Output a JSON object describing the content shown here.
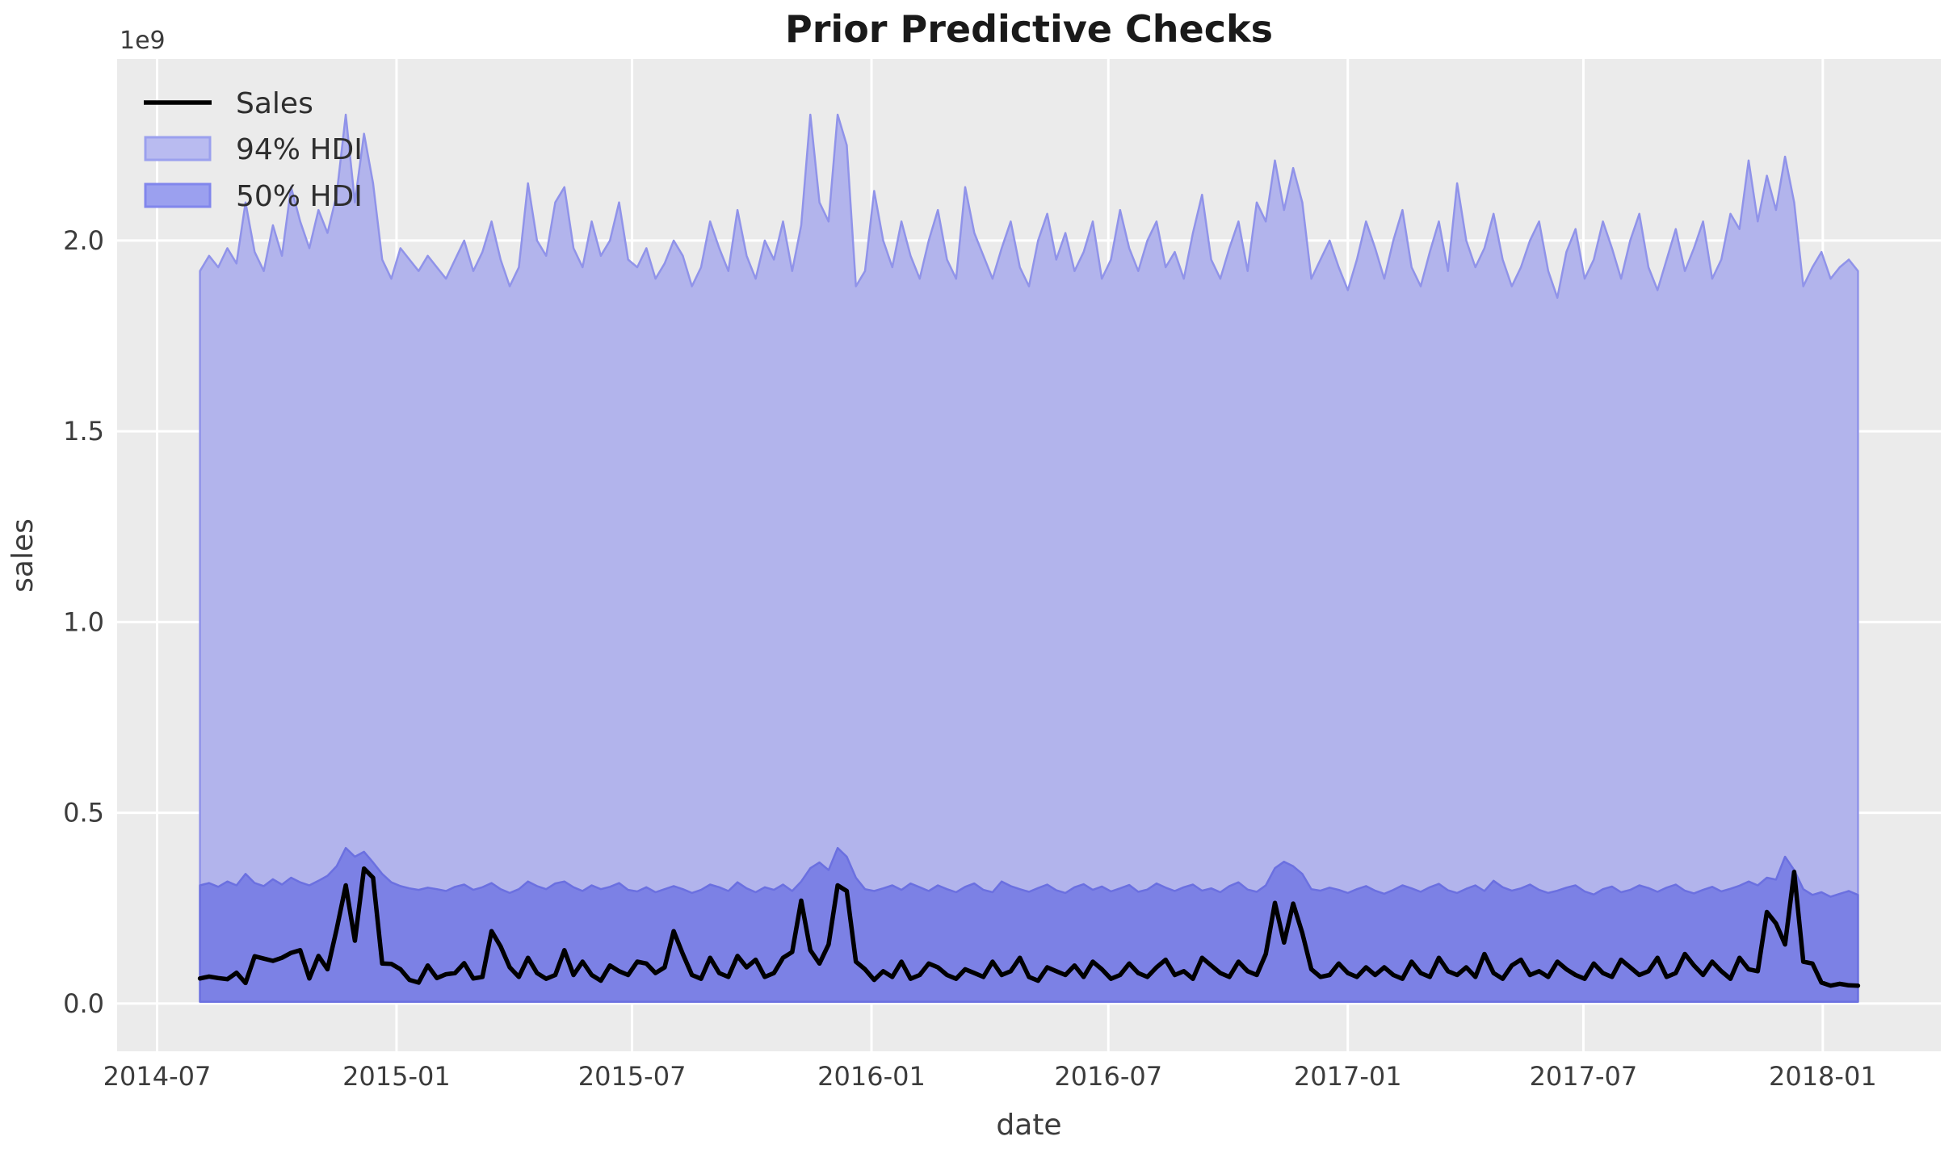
{
  "figure": {
    "offset_text": "1e9"
  },
  "colors": {
    "figure_bg": "#ffffff",
    "axes_bg": "#ebebeb",
    "grid": "#ffffff",
    "title": "#1a1a1a",
    "text": "#3c3c3c",
    "legend_text": "#2e2e2e",
    "sales_line": "#000000",
    "hdi94_fill": "#b2b4ec",
    "hdi94_edge": "#9093e9",
    "hdi50_fill": "#7c81e5",
    "hdi50_edge": "#6b70e0",
    "legend_94_fill": "#b9bbf0",
    "legend_94_edge": "#9ba0ee",
    "legend_50_fill": "#9ba0ef",
    "legend_50_edge": "#8186ec"
  },
  "chart_data": {
    "type": "area",
    "title": "Prior Predictive Checks",
    "xlabel": "date",
    "ylabel": "sales",
    "y_offset_text": "1e9",
    "values_unit": "1e9",
    "x_unit": "weekly observations, index 0 = 2014-08, index 182 = 2018-01",
    "grid": true,
    "legend_position": "upper left",
    "xlim": [
      -9.1,
      191.1
    ],
    "ylim": [
      -0.125,
      2.476
    ],
    "x_tick_labels": [
      "2014-07",
      "2015-01",
      "2015-07",
      "2016-01",
      "2016-07",
      "2017-01",
      "2017-07",
      "2018-01"
    ],
    "x_tick_positions": [
      -4.71,
      21.57,
      47.43,
      73.71,
      99.71,
      126.0,
      151.86,
      178.14
    ],
    "y_tick_labels": [
      "0.0",
      "0.5",
      "1.0",
      "1.5",
      "2.0"
    ],
    "y_tick_values": [
      0,
      0.5,
      1.0,
      1.5,
      2.0
    ],
    "series": [
      {
        "name": "Sales",
        "type": "line",
        "values": [
          0.066,
          0.071,
          0.067,
          0.064,
          0.081,
          0.054,
          0.124,
          0.118,
          0.112,
          0.12,
          0.133,
          0.14,
          0.066,
          0.125,
          0.09,
          0.195,
          0.31,
          0.165,
          0.354,
          0.33,
          0.105,
          0.104,
          0.09,
          0.062,
          0.055,
          0.1,
          0.067,
          0.077,
          0.08,
          0.106,
          0.066,
          0.07,
          0.19,
          0.15,
          0.095,
          0.07,
          0.12,
          0.08,
          0.065,
          0.075,
          0.14,
          0.075,
          0.11,
          0.075,
          0.06,
          0.1,
          0.085,
          0.075,
          0.11,
          0.105,
          0.08,
          0.095,
          0.19,
          0.13,
          0.075,
          0.065,
          0.12,
          0.08,
          0.07,
          0.125,
          0.095,
          0.115,
          0.07,
          0.08,
          0.12,
          0.135,
          0.27,
          0.14,
          0.105,
          0.155,
          0.31,
          0.295,
          0.11,
          0.09,
          0.062,
          0.085,
          0.07,
          0.11,
          0.065,
          0.075,
          0.105,
          0.095,
          0.075,
          0.065,
          0.09,
          0.08,
          0.07,
          0.11,
          0.075,
          0.085,
          0.12,
          0.07,
          0.06,
          0.095,
          0.085,
          0.075,
          0.1,
          0.07,
          0.11,
          0.09,
          0.065,
          0.075,
          0.105,
          0.08,
          0.07,
          0.095,
          0.115,
          0.075,
          0.085,
          0.065,
          0.12,
          0.1,
          0.08,
          0.07,
          0.11,
          0.085,
          0.075,
          0.13,
          0.264,
          0.16,
          0.262,
          0.185,
          0.09,
          0.07,
          0.075,
          0.105,
          0.08,
          0.07,
          0.095,
          0.075,
          0.095,
          0.075,
          0.065,
          0.11,
          0.08,
          0.07,
          0.12,
          0.085,
          0.075,
          0.095,
          0.07,
          0.13,
          0.08,
          0.065,
          0.1,
          0.115,
          0.075,
          0.085,
          0.07,
          0.11,
          0.09,
          0.075,
          0.065,
          0.105,
          0.08,
          0.07,
          0.115,
          0.095,
          0.075,
          0.085,
          0.12,
          0.07,
          0.08,
          0.13,
          0.1,
          0.075,
          0.11,
          0.085,
          0.065,
          0.12,
          0.09,
          0.085,
          0.24,
          0.21,
          0.155,
          0.345,
          0.11,
          0.105,
          0.055,
          0.047,
          0.052,
          0.048,
          0.047
        ]
      },
      {
        "name": "94% HDI",
        "type": "band",
        "lower_constant": 0.005,
        "upper": [
          1.92,
          1.96,
          1.93,
          1.98,
          1.94,
          2.1,
          1.97,
          1.92,
          2.04,
          1.96,
          2.14,
          2.05,
          1.98,
          2.08,
          2.02,
          2.12,
          2.33,
          2.1,
          2.28,
          2.15,
          1.95,
          1.9,
          1.98,
          1.95,
          1.92,
          1.96,
          1.93,
          1.9,
          1.95,
          2.0,
          1.92,
          1.97,
          2.05,
          1.95,
          1.88,
          1.93,
          2.15,
          2.0,
          1.96,
          2.1,
          2.14,
          1.98,
          1.93,
          2.05,
          1.96,
          2.0,
          2.1,
          1.95,
          1.93,
          1.98,
          1.9,
          1.94,
          2.0,
          1.96,
          1.88,
          1.93,
          2.05,
          1.98,
          1.92,
          2.08,
          1.96,
          1.9,
          2.0,
          1.95,
          2.05,
          1.92,
          2.04,
          2.33,
          2.1,
          2.05,
          2.33,
          2.25,
          1.88,
          1.92,
          2.13,
          2.0,
          1.93,
          2.05,
          1.96,
          1.9,
          2.0,
          2.08,
          1.95,
          1.9,
          2.14,
          2.02,
          1.96,
          1.9,
          1.98,
          2.05,
          1.93,
          1.88,
          2.0,
          2.07,
          1.95,
          2.02,
          1.92,
          1.97,
          2.05,
          1.9,
          1.95,
          2.08,
          1.98,
          1.92,
          2.0,
          2.05,
          1.93,
          1.97,
          1.9,
          2.02,
          2.12,
          1.95,
          1.9,
          1.98,
          2.05,
          1.92,
          2.1,
          2.05,
          2.21,
          2.08,
          2.19,
          2.1,
          1.9,
          1.95,
          2.0,
          1.93,
          1.87,
          1.95,
          2.05,
          1.98,
          1.9,
          2.0,
          2.08,
          1.93,
          1.88,
          1.97,
          2.05,
          1.92,
          2.15,
          2.0,
          1.93,
          1.98,
          2.07,
          1.95,
          1.88,
          1.93,
          2.0,
          2.05,
          1.92,
          1.85,
          1.97,
          2.03,
          1.9,
          1.95,
          2.05,
          1.98,
          1.9,
          2.0,
          2.07,
          1.93,
          1.87,
          1.95,
          2.03,
          1.92,
          1.98,
          2.05,
          1.9,
          1.95,
          2.07,
          2.03,
          2.21,
          2.05,
          2.17,
          2.08,
          2.22,
          2.1,
          1.88,
          1.93,
          1.97,
          1.9,
          1.93,
          1.95,
          1.92
        ]
      },
      {
        "name": "50% HDI",
        "type": "band",
        "lower_constant": 0.005,
        "upper": [
          0.31,
          0.316,
          0.306,
          0.32,
          0.31,
          0.34,
          0.316,
          0.308,
          0.326,
          0.312,
          0.33,
          0.318,
          0.31,
          0.322,
          0.335,
          0.36,
          0.408,
          0.385,
          0.398,
          0.37,
          0.34,
          0.318,
          0.308,
          0.302,
          0.298,
          0.304,
          0.3,
          0.295,
          0.306,
          0.312,
          0.298,
          0.305,
          0.316,
          0.3,
          0.29,
          0.3,
          0.32,
          0.308,
          0.3,
          0.315,
          0.32,
          0.305,
          0.295,
          0.31,
          0.3,
          0.306,
          0.316,
          0.298,
          0.294,
          0.305,
          0.292,
          0.3,
          0.308,
          0.3,
          0.29,
          0.298,
          0.312,
          0.305,
          0.295,
          0.318,
          0.302,
          0.292,
          0.305,
          0.298,
          0.312,
          0.295,
          0.32,
          0.355,
          0.37,
          0.35,
          0.408,
          0.385,
          0.33,
          0.3,
          0.295,
          0.302,
          0.31,
          0.298,
          0.315,
          0.305,
          0.295,
          0.31,
          0.3,
          0.292,
          0.306,
          0.315,
          0.298,
          0.292,
          0.32,
          0.308,
          0.3,
          0.293,
          0.303,
          0.312,
          0.297,
          0.29,
          0.305,
          0.313,
          0.298,
          0.307,
          0.294,
          0.302,
          0.311,
          0.293,
          0.299,
          0.315,
          0.304,
          0.295,
          0.305,
          0.312,
          0.296,
          0.302,
          0.292,
          0.308,
          0.318,
          0.299,
          0.293,
          0.31,
          0.355,
          0.372,
          0.36,
          0.34,
          0.3,
          0.296,
          0.304,
          0.298,
          0.29,
          0.3,
          0.308,
          0.296,
          0.288,
          0.298,
          0.31,
          0.302,
          0.293,
          0.305,
          0.314,
          0.297,
          0.29,
          0.301,
          0.31,
          0.295,
          0.322,
          0.305,
          0.296,
          0.302,
          0.312,
          0.298,
          0.29,
          0.296,
          0.304,
          0.31,
          0.294,
          0.286,
          0.3,
          0.307,
          0.292,
          0.298,
          0.31,
          0.303,
          0.293,
          0.304,
          0.312,
          0.296,
          0.289,
          0.298,
          0.306,
          0.294,
          0.301,
          0.309,
          0.32,
          0.31,
          0.33,
          0.325,
          0.385,
          0.35,
          0.3,
          0.285,
          0.292,
          0.28,
          0.288,
          0.295,
          0.285
        ]
      }
    ]
  }
}
